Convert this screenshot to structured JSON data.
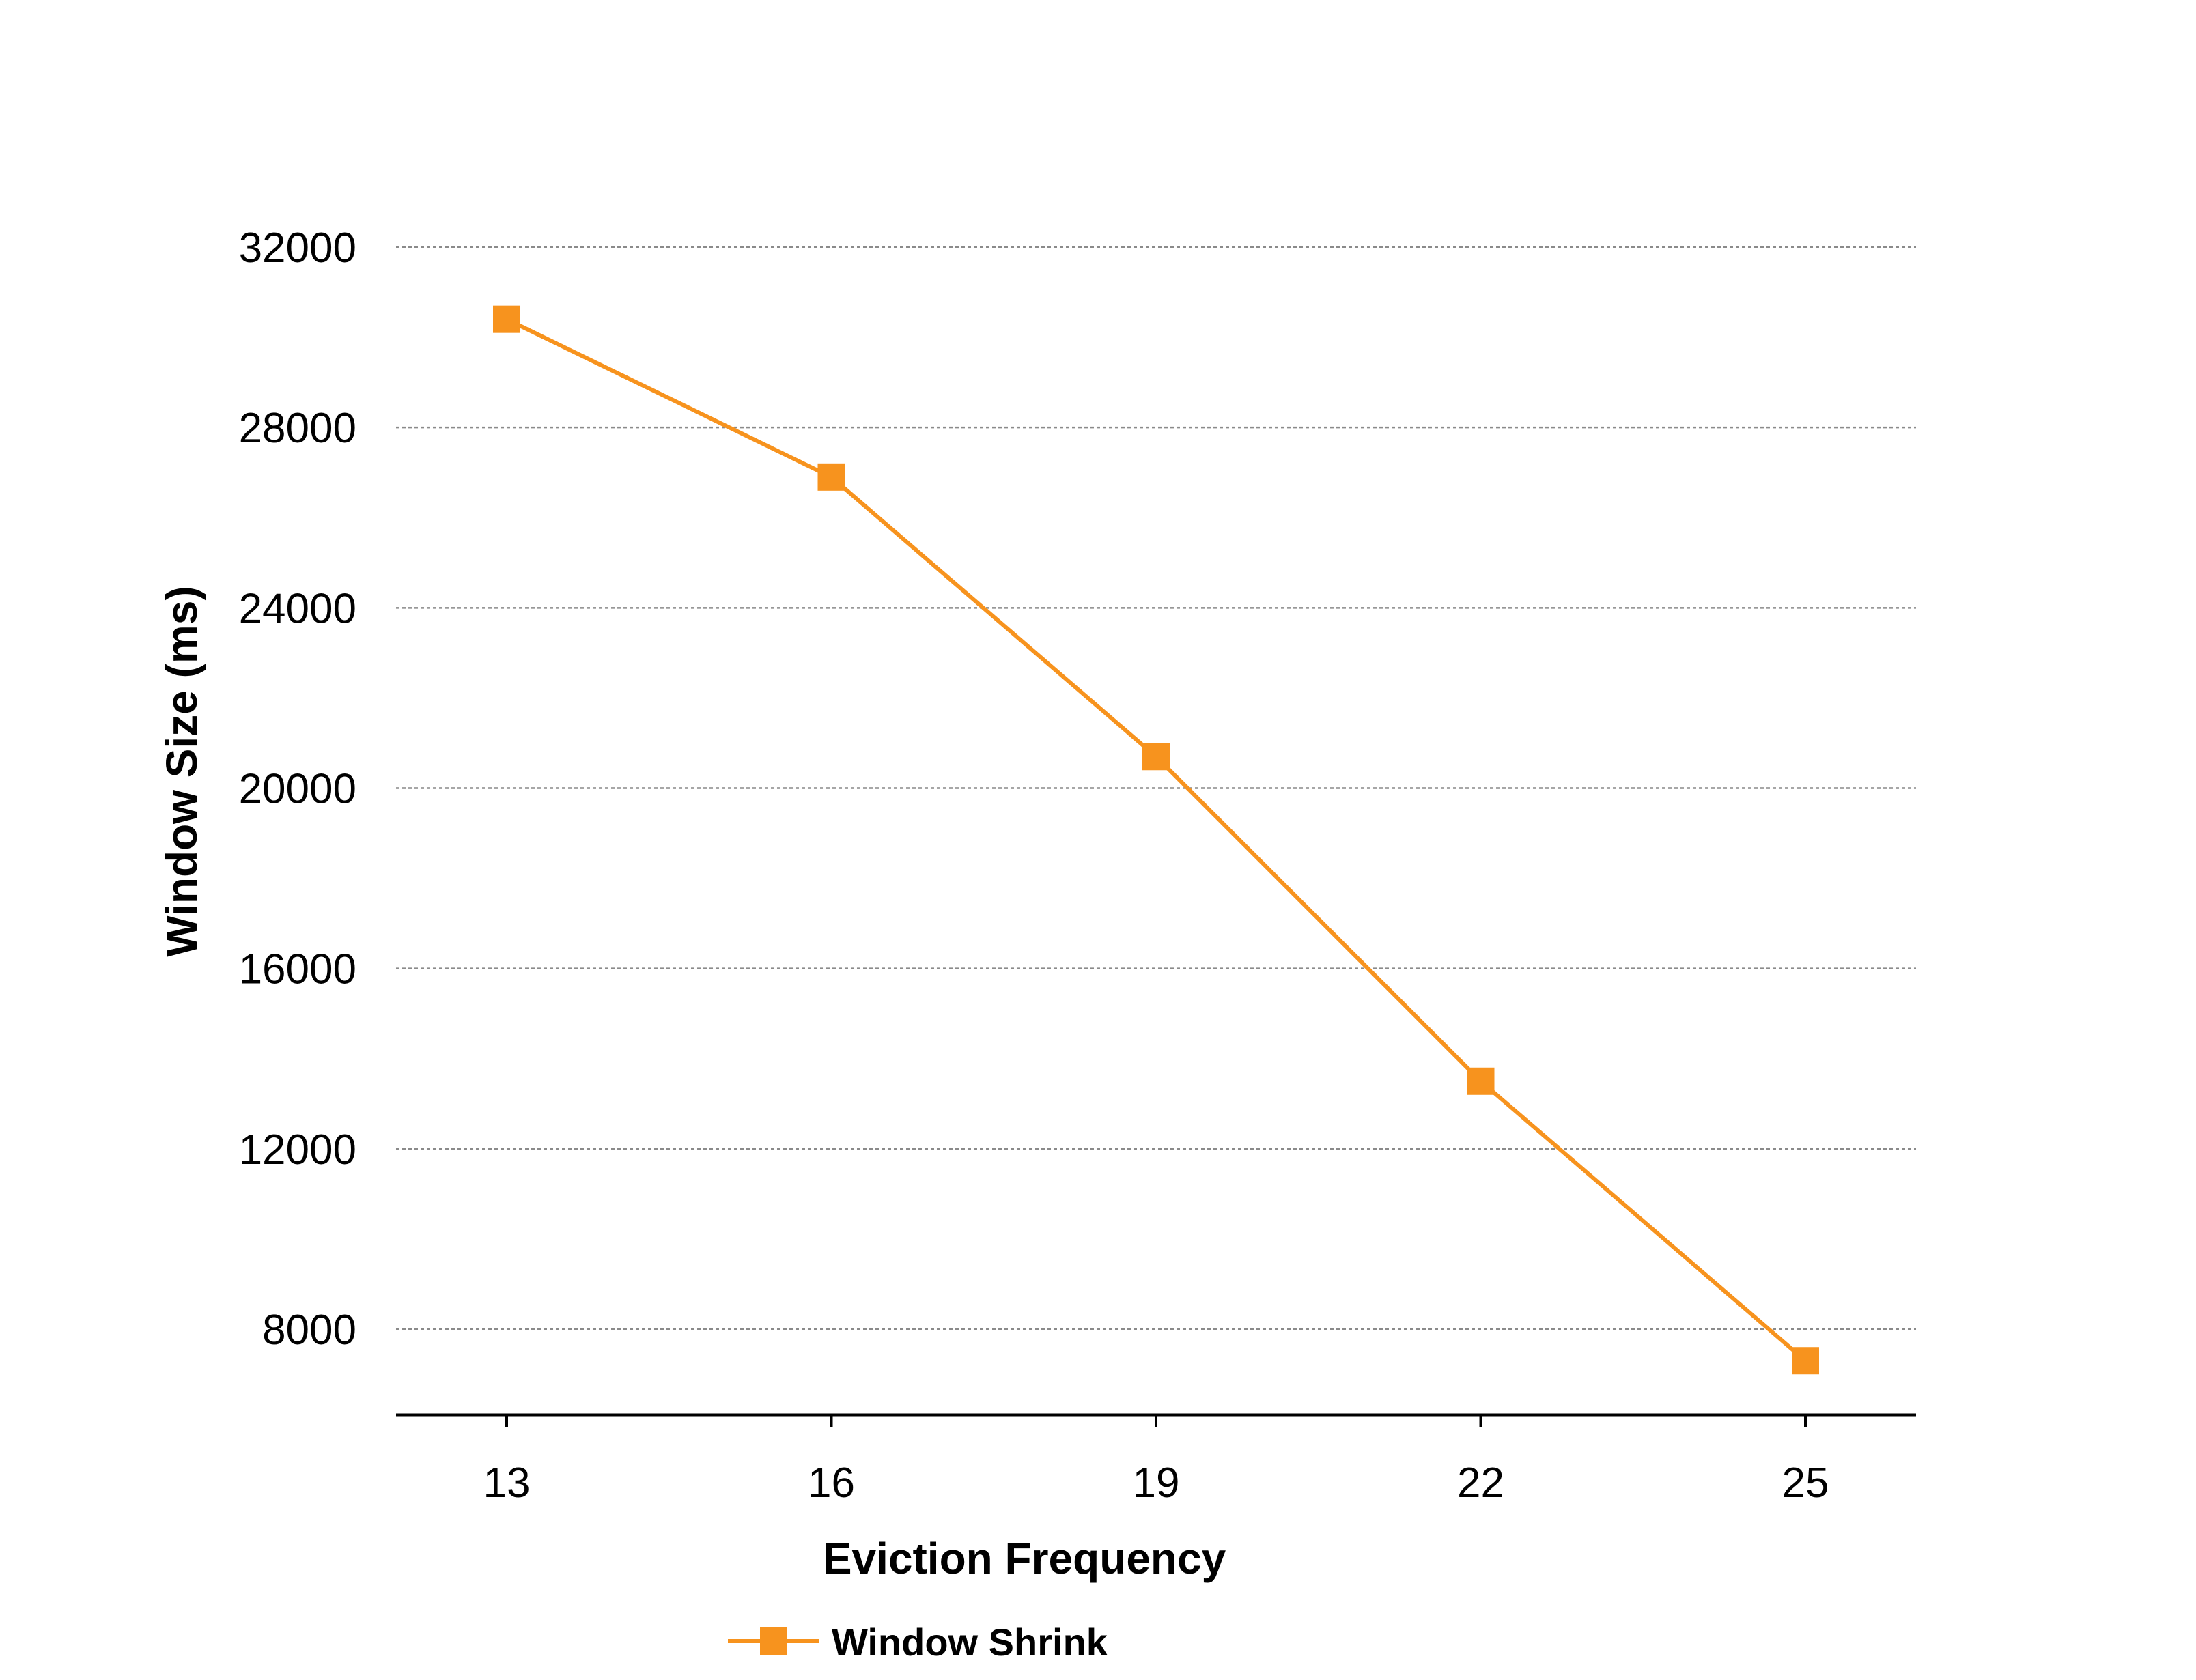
{
  "chart_data": {
    "type": "line",
    "title": "",
    "xlabel": "Eviction Frequency",
    "ylabel": "Window Size (ms)",
    "x": [
      13,
      16,
      19,
      22,
      25
    ],
    "xticks": [
      "13",
      "16",
      "19",
      "22",
      "25"
    ],
    "ylim": [
      6000,
      33000
    ],
    "yticks": [
      8000,
      12000,
      16000,
      20000,
      24000,
      28000,
      32000
    ],
    "ytick_labels": [
      "8000",
      "12000",
      "16000",
      "20000",
      "24000",
      "28000",
      "32000"
    ],
    "grid": "horizontal dotted",
    "legend_position": "bottom",
    "series": [
      {
        "name": "Window Shrink",
        "values": [
          30400,
          26900,
          20700,
          13500,
          7300
        ],
        "color": "#F7931E",
        "marker": "square"
      }
    ]
  }
}
